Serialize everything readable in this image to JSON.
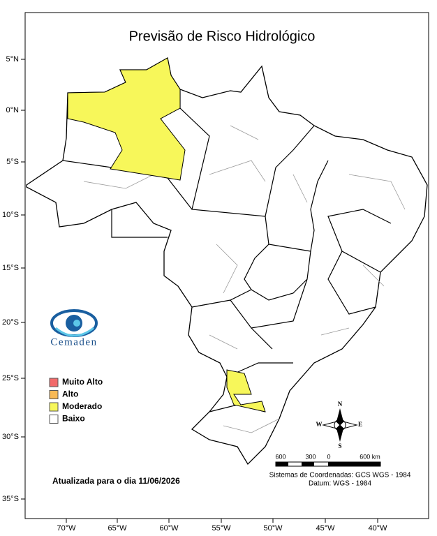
{
  "title": "Previsão de Risco Hidrológico",
  "lat_labels": [
    "5°N",
    "0°N",
    "5°S",
    "10°S",
    "15°S",
    "20°S",
    "25°S",
    "30°S",
    "35°S"
  ],
  "lon_labels": [
    "70°W",
    "65°W",
    "60°W",
    "55°W",
    "50°W",
    "45°W",
    "40°W"
  ],
  "legend": [
    {
      "label": "Muito Alto",
      "color": "#f26a6a"
    },
    {
      "label": "Alto",
      "color": "#f7b955"
    },
    {
      "label": "Moderado",
      "color": "#f7f75a"
    },
    {
      "label": "Baixo",
      "color": "#ffffff"
    }
  ],
  "logo": "Cemaden",
  "updated": "Atualizada para o dia 11/06/2026",
  "compass": {
    "n": "N",
    "s": "S",
    "e": "E",
    "w": "W"
  },
  "scale_labels": [
    "600",
    "300",
    "0",
    "600 km"
  ],
  "crs": [
    "Sistemas de Coordenadas: GCS WGS - 1984",
    "Datum: WGS - 1984"
  ]
}
